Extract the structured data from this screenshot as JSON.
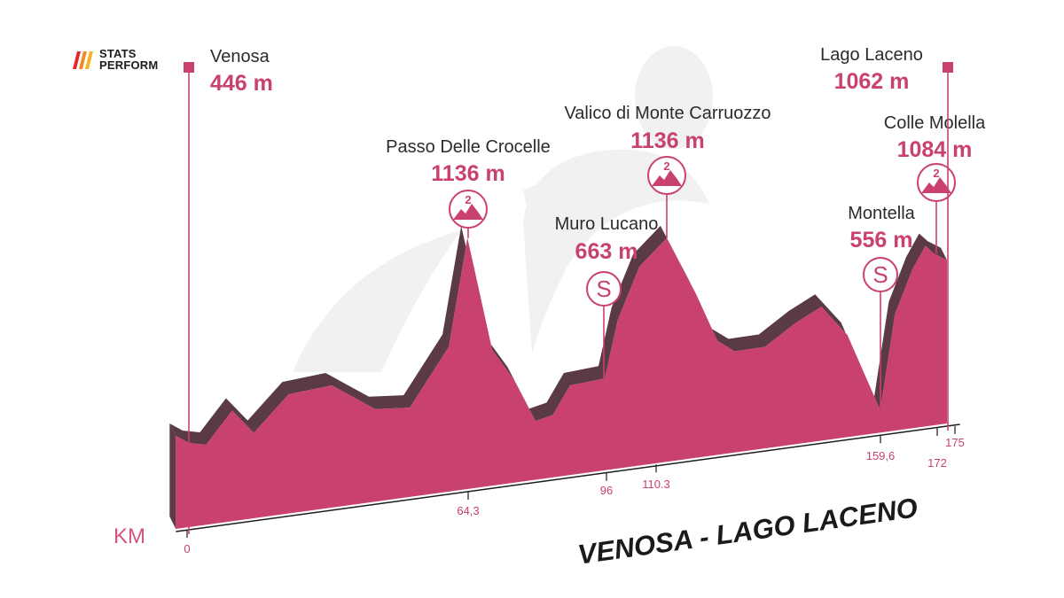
{
  "brand": {
    "line1": "STATS",
    "line2": "PERFORM",
    "logo_icon": "slash-stripes-icon",
    "colors": [
      "#e8252a",
      "#f08a24",
      "#f5b324"
    ]
  },
  "colors": {
    "profile_face": "#c9416e",
    "profile_top": "#5a3a44",
    "profile_side": "#5e3a47",
    "accent": "#c9416e",
    "watermark": "#f1f1f1"
  },
  "chart_data": {
    "type": "area",
    "title": "VENOSA - LAGO LACENO",
    "xlabel": "KM",
    "ylabel": "",
    "xlim": [
      0,
      175
    ],
    "ylim": [
      200,
      1250
    ],
    "grid": false,
    "x_ticks": [
      "0",
      "64,3",
      "96",
      "110.3",
      "159,6",
      "172",
      "175"
    ],
    "profile": {
      "x": [
        -3,
        0,
        4,
        10,
        15,
        23,
        33,
        43,
        51,
        60,
        64.3,
        70,
        75,
        80,
        84,
        88,
        96,
        99,
        104,
        110.3,
        117,
        122,
        126,
        133,
        140,
        146,
        152,
        159.6,
        163,
        167,
        170,
        172,
        175
      ],
      "elevation": [
        470,
        446,
        440,
        555,
        480,
        610,
        640,
        560,
        565,
        770,
        1136,
        760,
        660,
        520,
        540,
        640,
        663,
        860,
        1040,
        1136,
        950,
        790,
        755,
        770,
        850,
        905,
        810,
        556,
        880,
        1030,
        1110,
        1084,
        1062
      ]
    },
    "waypoints": [
      {
        "name": "Venosa",
        "elevation_label": "446 m",
        "km": 0,
        "marker": "start",
        "marker_icon": "start-flag-icon"
      },
      {
        "name": "Passo Delle Crocelle",
        "elevation_label": "1136 m",
        "km": 64.3,
        "marker": "gpm",
        "category": "2",
        "marker_icon": "mountain-category-icon"
      },
      {
        "name": "Muro Lucano",
        "elevation_label": "663 m",
        "km": 96,
        "marker": "sprint",
        "category": "S",
        "marker_icon": "sprint-icon"
      },
      {
        "name": "Valico di Monte Carruozzo",
        "elevation_label": "1136 m",
        "km": 110.3,
        "marker": "gpm",
        "category": "2",
        "marker_icon": "mountain-category-icon"
      },
      {
        "name": "Montella",
        "elevation_label": "556 m",
        "km": 159.6,
        "marker": "sprint",
        "category": "S",
        "marker_icon": "sprint-icon"
      },
      {
        "name": "Colle Molella",
        "elevation_label": "1084 m",
        "km": 172,
        "marker": "gpm",
        "category": "2",
        "marker_icon": "mountain-category-icon"
      },
      {
        "name": "Lago Laceno",
        "elevation_label": "1062 m",
        "km": 175,
        "marker": "finish",
        "marker_icon": "finish-flag-icon"
      }
    ]
  }
}
